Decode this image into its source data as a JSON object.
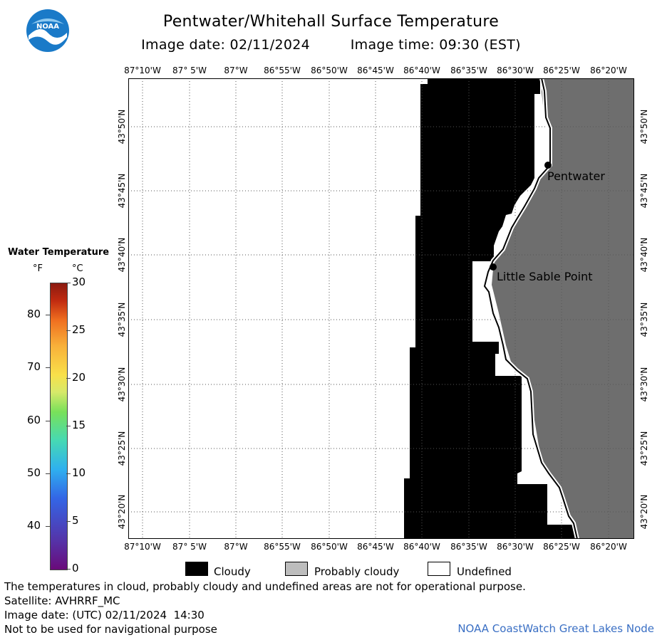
{
  "header": {
    "title": "Pentwater/Whitehall Surface Temperature",
    "date_text": "Image date: 02/11/2024",
    "time_text": "Image time: 09:30 (EST)"
  },
  "logo": {
    "text": "NOAA"
  },
  "longitude_labels": [
    "87°10'W",
    "87° 5'W",
    "87°W",
    "86°55'W",
    "86°50'W",
    "86°45'W",
    "86°40'W",
    "86°35'W",
    "86°30'W",
    "86°25'W",
    "86°20'W"
  ],
  "latitude_labels": [
    "43°50'N",
    "43°45'N",
    "43°40'N",
    "43°35'N",
    "43°30'N",
    "43°25'N",
    "43°20'N"
  ],
  "places": [
    {
      "name": "Pentwater"
    },
    {
      "name": "Little Sable Point"
    }
  ],
  "temperature_legend": {
    "title": "Water Temperature",
    "unit_f": "°F",
    "unit_c": "°C",
    "fahrenheit_ticks": [
      "80",
      "70",
      "60",
      "50",
      "40"
    ],
    "celsius_ticks": [
      "30",
      "25",
      "20",
      "15",
      "10",
      "5",
      "0"
    ],
    "range_c": [
      0,
      30
    ]
  },
  "cloud_legend": {
    "cloudy": "Cloudy",
    "probably_cloudy": "Probably cloudy",
    "undefined": "Undefined"
  },
  "footer": {
    "note": "The temperatures in cloud, probably cloudy and undefined areas are not for operational purpose.",
    "satellite": "Satellite: AVHRRF_MC",
    "utc_date": "Image date: (UTC) 02/11/2024  14:30",
    "nav_warning": "Not to be used for navigational purpose",
    "credit": "NOAA CoastWatch Great Lakes Node"
  },
  "colors": {
    "cloud": "#000000",
    "land": "#6e6e6e",
    "undefined": "#ffffff",
    "credit_text": "#3a6fc4",
    "logo_blue": "#1a7ac8"
  }
}
